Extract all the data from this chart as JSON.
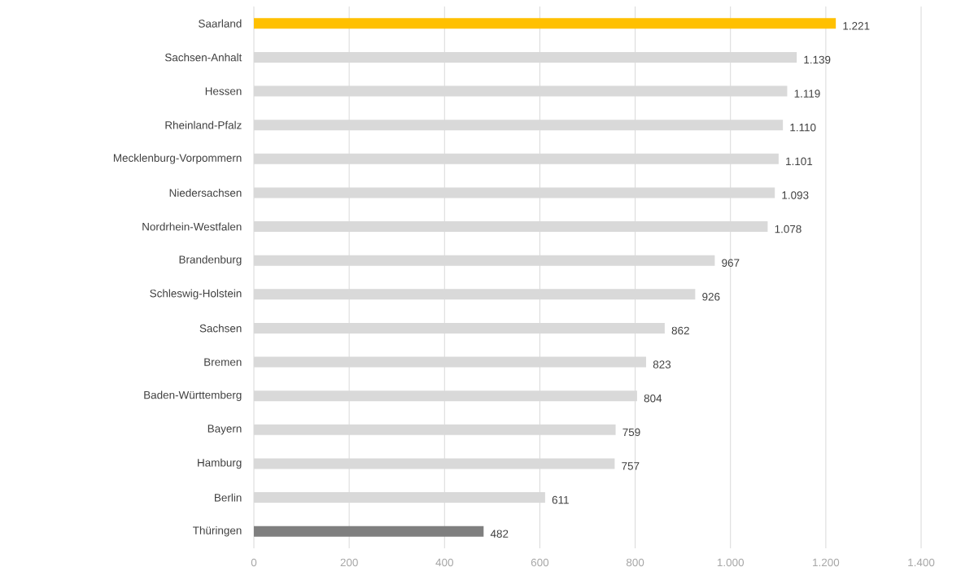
{
  "chart_data": {
    "type": "bar",
    "orientation": "horizontal",
    "categories": [
      "Saarland",
      "Sachsen-Anhalt",
      "Hessen",
      "Rheinland-Pfalz",
      "Mecklenburg-Vorpommern",
      "Niedersachsen",
      "Nordrhein-Westfalen",
      "Brandenburg",
      "Schleswig-Holstein",
      "Sachsen",
      "Bremen",
      "Baden-Württemberg",
      "Bayern",
      "Hamburg",
      "Berlin",
      "Thüringen"
    ],
    "values": [
      1221,
      1139,
      1119,
      1110,
      1101,
      1093,
      1078,
      967,
      926,
      862,
      823,
      804,
      759,
      757,
      611,
      482
    ],
    "value_labels": [
      "1.221",
      "1.139",
      "1.119",
      "1.110",
      "1.101",
      "1.093",
      "1.078",
      "967",
      "926",
      "862",
      "823",
      "804",
      "759",
      "757",
      "611",
      "482"
    ],
    "colors": [
      "#ffc000",
      "#d9d9d9",
      "#d9d9d9",
      "#d9d9d9",
      "#d9d9d9",
      "#d9d9d9",
      "#d9d9d9",
      "#d9d9d9",
      "#d9d9d9",
      "#d9d9d9",
      "#d9d9d9",
      "#d9d9d9",
      "#d9d9d9",
      "#d9d9d9",
      "#d9d9d9",
      "#7f7f7f"
    ],
    "xlim": [
      0,
      1400
    ],
    "xticks": [
      0,
      200,
      400,
      600,
      800,
      {
        "value": 1000,
        "label": "1.000"
      },
      {
        "value": 1200,
        "label": "1.200"
      },
      {
        "value": 1400,
        "label": "1.400"
      }
    ],
    "grid": "x"
  }
}
